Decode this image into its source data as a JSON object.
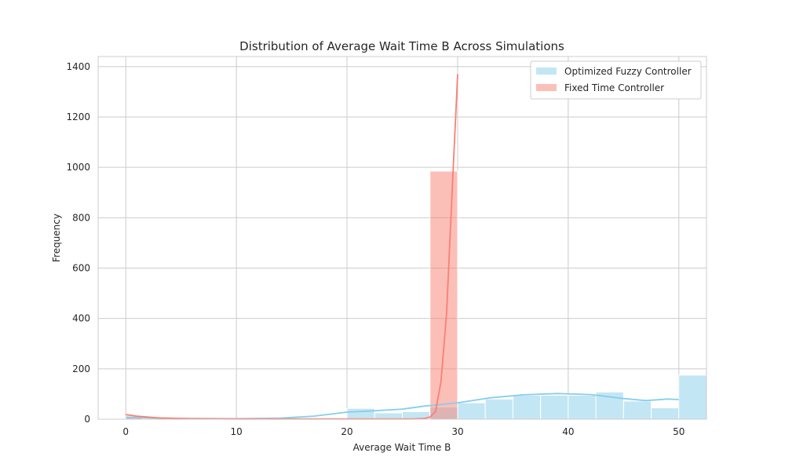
{
  "chart_data": {
    "type": "bar",
    "title": "Distribution of Average Wait Time B Across Simulations",
    "xlabel": "Average Wait Time B",
    "ylabel": "Frequency",
    "xlim": [
      -2.5,
      52.5
    ],
    "ylim": [
      0,
      1440
    ],
    "xticks": [
      0,
      10,
      20,
      30,
      40,
      50
    ],
    "yticks": [
      0,
      200,
      400,
      600,
      800,
      1000,
      1200,
      1400
    ],
    "grid": true,
    "legend_position": "top-right",
    "series": [
      {
        "name": "Optimized Fuzzy Controller",
        "color": "#87ceeb",
        "bin_edges": [
          0,
          2.5,
          5,
          7.5,
          10,
          12.5,
          15,
          17.5,
          20,
          22.5,
          25,
          27.5,
          30,
          32.5,
          35,
          37.5,
          40,
          42.5,
          45,
          47.5,
          50
        ],
        "counts": [
          8,
          6,
          1,
          1,
          0,
          0,
          1,
          3,
          43,
          25,
          30,
          48,
          65,
          80,
          95,
          95,
          95,
          108,
          72,
          45,
          175
        ],
        "kde": [
          [
            0,
            8
          ],
          [
            2,
            5
          ],
          [
            5,
            3
          ],
          [
            10,
            2
          ],
          [
            14,
            4
          ],
          [
            17,
            12
          ],
          [
            20,
            28
          ],
          [
            22,
            32
          ],
          [
            25,
            40
          ],
          [
            27,
            52
          ],
          [
            30,
            65
          ],
          [
            33,
            85
          ],
          [
            36,
            97
          ],
          [
            39,
            102
          ],
          [
            42,
            98
          ],
          [
            45,
            82
          ],
          [
            47,
            74
          ],
          [
            49,
            80
          ],
          [
            50,
            78
          ]
        ]
      },
      {
        "name": "Fixed Time Controller",
        "color": "#fa8072",
        "bin_edges": [
          0,
          1.5,
          27.5,
          30
        ],
        "counts": [
          12,
          2,
          985
        ],
        "kde": [
          [
            0,
            18
          ],
          [
            1,
            12
          ],
          [
            3,
            5
          ],
          [
            6,
            2
          ],
          [
            10,
            1
          ],
          [
            20,
            1
          ],
          [
            26,
            1
          ],
          [
            27,
            3
          ],
          [
            27.5,
            8
          ],
          [
            28,
            30
          ],
          [
            28.5,
            150
          ],
          [
            29,
            420
          ],
          [
            29.5,
            900
          ],
          [
            30,
            1370
          ]
        ]
      }
    ]
  }
}
